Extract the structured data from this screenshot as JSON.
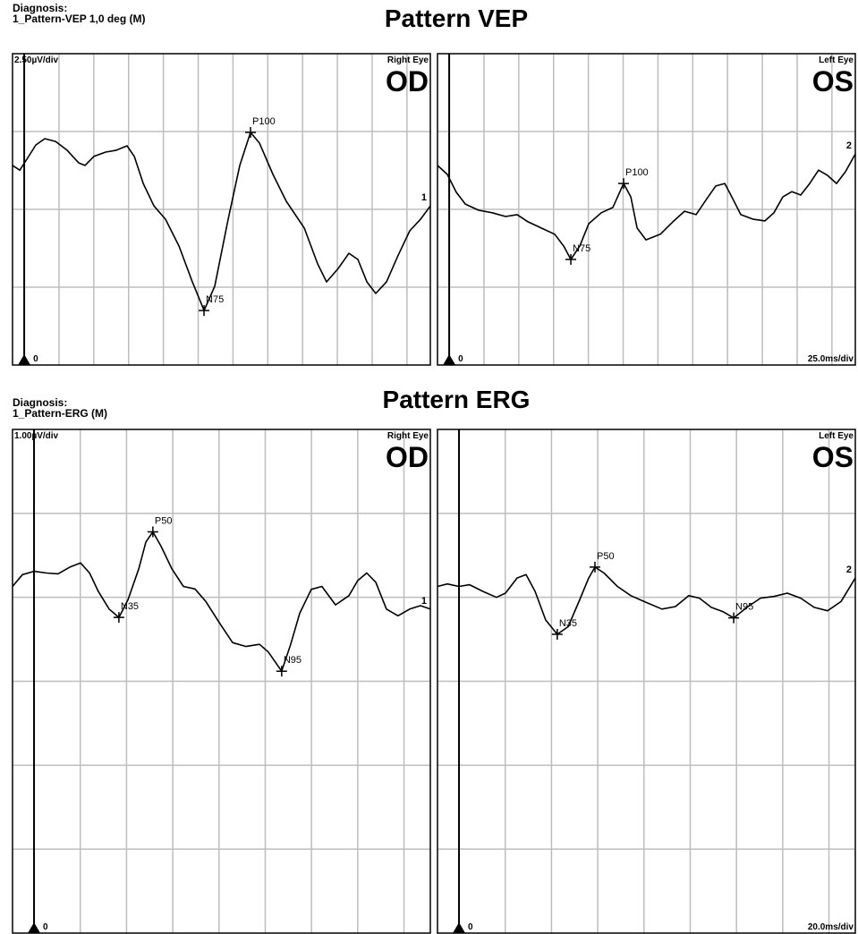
{
  "sections": [
    {
      "diagnosis_label": "Diagnosis:",
      "diagnosis": "1_Pattern-VEP 1,0 deg (M)",
      "title": "Pattern VEP"
    },
    {
      "diagnosis_label": "Diagnosis:",
      "diagnosis": "1_Pattern-ERG (M)",
      "title": "Pattern ERG"
    }
  ],
  "chart_data": [
    {
      "type": "line",
      "scale_label": "2.50µV/div",
      "eye_label": "Right Eye",
      "eye": "OD",
      "zero_label": "0",
      "xlim": [
        -8.4,
        291.8
      ],
      "ylim": [
        -5,
        5
      ],
      "x_division": 25,
      "y_division": 2.5,
      "x": [
        -8.4,
        -3.2,
        1.9,
        8.4,
        14.8,
        22.5,
        30.8,
        39.2,
        43.7,
        50.1,
        58.5,
        66.2,
        73.9,
        79.1,
        85.5,
        93.2,
        101.5,
        111.2,
        120.8,
        129.2,
        136.9,
        146.5,
        154.9,
        162.6,
        169.0,
        178.7,
        188.3,
        201.2,
        210.8,
        217.2,
        225.6,
        233.3,
        239.7,
        246.2,
        252.6,
        260.3,
        268.7,
        277.0,
        284.7,
        291.8
      ],
      "series": [
        {
          "name": "1",
          "color": "#000000",
          "values": [
            1.41,
            1.26,
            1.61,
            2.07,
            2.27,
            2.18,
            1.9,
            1.49,
            1.41,
            1.7,
            1.84,
            1.9,
            2.04,
            1.7,
            0.83,
            0.11,
            -0.32,
            -1.18,
            -2.33,
            -3.25,
            -2.47,
            -0.32,
            1.41,
            2.47,
            2.13,
            1.12,
            0.26,
            -0.6,
            -1.75,
            -2.33,
            -1.9,
            -1.41,
            -1.61,
            -2.33,
            -2.7,
            -2.33,
            -1.47,
            -0.69,
            -0.32,
            0.11
          ]
        }
      ],
      "markers": [
        {
          "label": "N75",
          "x": 129.2,
          "y": -3.25
        },
        {
          "label": "P100",
          "x": 162.6,
          "y": 2.47
        }
      ]
    },
    {
      "type": "line",
      "eye_label": "Left Eye",
      "eye": "OS",
      "zero_label": "0",
      "time_label": "25.0ms/div",
      "xlim": [
        -8.4,
        291.8
      ],
      "ylim": [
        -5,
        5
      ],
      "x_division": 25,
      "y_division": 2.5,
      "x": [
        -8.4,
        -1.3,
        5.1,
        11.6,
        21.2,
        30.9,
        40.5,
        48.8,
        56.6,
        66.2,
        75.8,
        82.3,
        87.4,
        93.8,
        100.3,
        109.3,
        117.6,
        125.3,
        130.5,
        135.0,
        141.4,
        151.7,
        160.7,
        169.1,
        177.4,
        185.1,
        191.5,
        198.0,
        203.1,
        209.5,
        218.5,
        226.9,
        233.3,
        239.7,
        246.2,
        252.6,
        259.0,
        265.4,
        271.9,
        278.3,
        284.7,
        291.8
      ],
      "series": [
        {
          "name": "2",
          "color": "#000000",
          "values": [
            1.41,
            1.12,
            0.55,
            0.17,
            -0.03,
            -0.11,
            -0.23,
            -0.17,
            -0.4,
            -0.6,
            -0.8,
            -1.18,
            -1.61,
            -1.18,
            -0.46,
            -0.11,
            0.06,
            0.83,
            0.4,
            -0.6,
            -0.98,
            -0.8,
            -0.4,
            -0.06,
            -0.17,
            0.34,
            0.75,
            0.83,
            0.4,
            -0.17,
            -0.32,
            -0.37,
            -0.11,
            0.4,
            0.57,
            0.46,
            0.83,
            1.26,
            1.09,
            0.83,
            1.21,
            1.78
          ]
        }
      ],
      "markers": [
        {
          "label": "N75",
          "x": 87.4,
          "y": -1.61
        },
        {
          "label": "P100",
          "x": 125.3,
          "y": 0.83
        }
      ]
    },
    {
      "type": "line",
      "scale_label": "1.00µV/div",
      "eye_label": "Right Eye",
      "eye": "OD",
      "zero_label": "0",
      "xlim": [
        -9.3,
        171.4
      ],
      "ylim": [
        -4,
        2
      ],
      "x_division": 20,
      "y_division": 1,
      "x": [
        -9.3,
        -5.0,
        0,
        5.4,
        10.4,
        15.5,
        20.1,
        24.0,
        27.8,
        32.5,
        36.7,
        40.6,
        45.3,
        48.4,
        51.4,
        54.9,
        59.6,
        64.6,
        69.6,
        74.3,
        80.1,
        85.9,
        91.7,
        97.5,
        101.3,
        107.1,
        111.0,
        114.9,
        119.9,
        124.5,
        130.4,
        136.2,
        140.0,
        143.9,
        147.8,
        152.4,
        157.4,
        162.5,
        167.1,
        171.4
      ],
      "series": [
        {
          "name": "1",
          "color": "#000000",
          "values": [
            0.13,
            0.27,
            0.31,
            0.29,
            0.28,
            0.36,
            0.41,
            0.29,
            0.07,
            -0.14,
            -0.24,
            -0.03,
            0.34,
            0.66,
            0.78,
            0.61,
            0.34,
            0.13,
            0.1,
            -0.05,
            -0.3,
            -0.54,
            -0.585,
            -0.56,
            -0.65,
            -0.88,
            -0.56,
            -0.19,
            0.095,
            0.13,
            -0.09,
            0.02,
            0.2,
            0.29,
            0.18,
            -0.14,
            -0.22,
            -0.14,
            -0.1,
            -0.14
          ]
        }
      ],
      "markers": [
        {
          "label": "N35",
          "x": 36.7,
          "y": -0.24
        },
        {
          "label": "P50",
          "x": 51.4,
          "y": 0.78
        },
        {
          "label": "N95",
          "x": 107.1,
          "y": -0.88
        }
      ]
    },
    {
      "type": "line",
      "eye_label": "Left Eye",
      "eye": "OS",
      "zero_label": "0",
      "time_label": "20.0ms/div",
      "xlim": [
        -9.3,
        171.4
      ],
      "ylim": [
        -4,
        2
      ],
      "x_division": 20,
      "y_division": 1,
      "x": [
        -9.3,
        -5.0,
        0,
        4.6,
        10.4,
        16.2,
        20.1,
        25.1,
        29.0,
        32.9,
        37.5,
        42.5,
        47.2,
        52.2,
        56.1,
        58.8,
        62.7,
        68.5,
        74.3,
        80.1,
        87.8,
        93.6,
        99.4,
        104.0,
        109.1,
        114.1,
        118.8,
        124.5,
        130.4,
        136.2,
        142.0,
        147.8,
        153.6,
        159.4,
        165.2,
        171.4
      ],
      "series": [
        {
          "name": "2",
          "color": "#000000",
          "values": [
            0.13,
            0.16,
            0.13,
            0.15,
            0.07,
            0,
            0.05,
            0.23,
            0.27,
            0.07,
            -0.27,
            -0.44,
            -0.35,
            -0.03,
            0.23,
            0.36,
            0.29,
            0.13,
            0.02,
            -0.05,
            -0.14,
            -0.11,
            0.02,
            -0.01,
            -0.12,
            -0.17,
            -0.245,
            -0.12,
            -0.01,
            0.01,
            0.05,
            -0.01,
            -0.12,
            -0.16,
            -0.05,
            0.23
          ]
        }
      ],
      "markers": [
        {
          "label": "N35",
          "x": 42.5,
          "y": -0.44
        },
        {
          "label": "P50",
          "x": 58.8,
          "y": 0.36
        },
        {
          "label": "N95",
          "x": 118.8,
          "y": -0.245
        }
      ]
    }
  ]
}
